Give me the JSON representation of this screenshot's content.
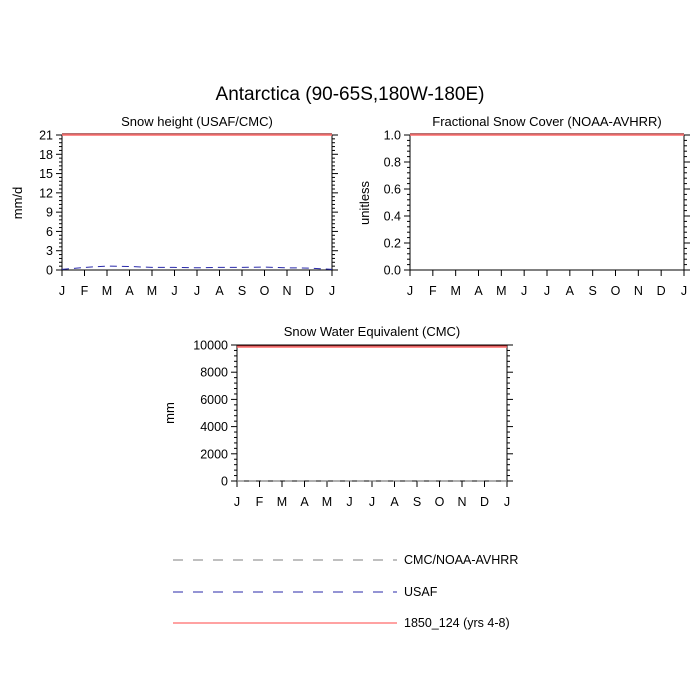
{
  "figure": {
    "title": "Antarctica (90-65S,180W-180E)"
  },
  "colors": {
    "cmc_noaa": "#7f7f7f",
    "usaf": "#2a2aaa",
    "model": "#ff6a6a",
    "model_dark": "#8b1a1a"
  },
  "chart_data": [
    {
      "type": "line",
      "title": "Snow height (USAF/CMC)",
      "ylabel": "mm/d",
      "xlabel": "",
      "ylim": [
        0,
        21
      ],
      "yticks": [
        "0",
        "3",
        "6",
        "9",
        "12",
        "15",
        "18",
        "21"
      ],
      "categories": [
        "J",
        "F",
        "M",
        "A",
        "M",
        "J",
        "J",
        "A",
        "S",
        "O",
        "N",
        "D",
        "J"
      ],
      "series": [
        {
          "name": "USAF",
          "style": "dashed",
          "values": [
            0.1,
            0.4,
            0.6,
            0.55,
            0.4,
            0.4,
            0.35,
            0.4,
            0.4,
            0.45,
            0.35,
            0.3,
            0.1
          ]
        },
        {
          "name": "1850_124 (yrs 4-8)",
          "style": "solid",
          "values": [
            21,
            21,
            21,
            21,
            21,
            21,
            21,
            21,
            21,
            21,
            21,
            21,
            21
          ]
        }
      ]
    },
    {
      "type": "line",
      "title": "Fractional Snow Cover (NOAA-AVHRR)",
      "ylabel": "unitless",
      "xlabel": "",
      "ylim": [
        0,
        1
      ],
      "yticks": [
        "0.0",
        "0.2",
        "0.4",
        "0.6",
        "0.8",
        "1.0"
      ],
      "categories": [
        "J",
        "F",
        "M",
        "A",
        "M",
        "J",
        "J",
        "A",
        "S",
        "O",
        "N",
        "D",
        "J"
      ],
      "series": [
        {
          "name": "1850_124 (yrs 4-8)",
          "style": "solid",
          "values": [
            1,
            1,
            1,
            1,
            1,
            1,
            1,
            1,
            1,
            1,
            1,
            1,
            1
          ]
        }
      ]
    },
    {
      "type": "line",
      "title": "Snow Water Equivalent (CMC)",
      "ylabel": "mm",
      "xlabel": "",
      "ylim": [
        0,
        10000
      ],
      "yticks": [
        "0",
        "2000",
        "4000",
        "6000",
        "8000",
        "10000"
      ],
      "categories": [
        "J",
        "F",
        "M",
        "A",
        "M",
        "J",
        "J",
        "A",
        "S",
        "O",
        "N",
        "D",
        "J"
      ],
      "series": [
        {
          "name": "CMC/NOAA-AVHRR",
          "style": "dashed",
          "values": [
            5,
            5,
            5,
            5,
            5,
            5,
            5,
            5,
            5,
            5,
            5,
            5,
            5
          ]
        },
        {
          "name": "1850_124 (yrs 4-8)",
          "style": "solid",
          "values": [
            9850,
            9850,
            9850,
            9850,
            9850,
            9850,
            9850,
            9850,
            9850,
            9850,
            9850,
            9850,
            9850
          ]
        }
      ]
    }
  ],
  "legend": [
    {
      "label": "CMC/NOAA-AVHRR",
      "style": "dashed",
      "color_key": "cmc_noaa"
    },
    {
      "label": "USAF",
      "style": "dashed",
      "color_key": "usaf"
    },
    {
      "label": "1850_124 (yrs 4-8)",
      "style": "solid",
      "color_key": "model"
    }
  ]
}
